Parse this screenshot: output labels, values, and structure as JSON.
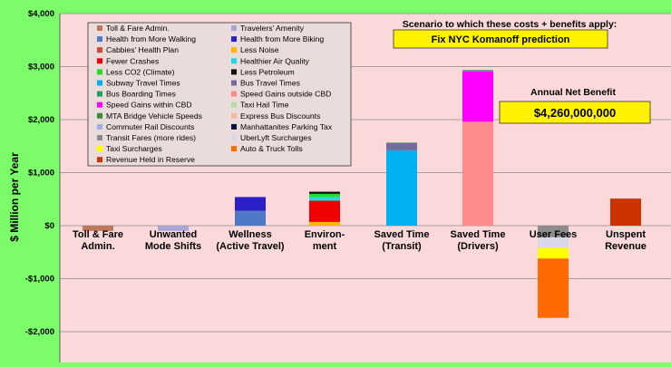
{
  "chart_data": {
    "type": "bar",
    "stacked": true,
    "title": "",
    "xlabel": "",
    "ylabel": "$ Million per Year",
    "ylim": [
      -2500,
      4000
    ],
    "yticks": [
      -2000,
      -1000,
      0,
      1000,
      2000,
      3000,
      4000
    ],
    "ytick_labels": [
      "-$2,000",
      "-$1,000",
      "$0",
      "$1,000",
      "$2,000",
      "$3,000",
      "$4,000"
    ],
    "grid": "horizontal",
    "legend_position": "top-left",
    "categories": [
      [
        "Toll & Fare",
        "Admin."
      ],
      [
        "Unwanted",
        "Mode Shifts"
      ],
      [
        "Wellness",
        "(Active Travel)"
      ],
      [
        "Environ-",
        "ment"
      ],
      [
        "Saved Time",
        "(Transit)"
      ],
      [
        "Saved Time",
        "(Drivers)"
      ],
      [
        "User Fees",
        ""
      ],
      [
        "Unspent",
        "Revenue"
      ]
    ],
    "series": [
      {
        "name": "Toll & Fare Admin.",
        "color": "#C0785A",
        "category": 0,
        "value": -100
      },
      {
        "name": "Travelers' Amenity",
        "color": "#A9A6D6",
        "category": 1,
        "value": -100
      },
      {
        "name": "Health from More Walking",
        "color": "#4F78C8",
        "category": 2,
        "value": 280
      },
      {
        "name": "Health from More Biking",
        "color": "#2A1FC8",
        "category": 2,
        "value": 260
      },
      {
        "name": "Cabbies' Health Plan",
        "color": "#C84A3A",
        "category": -1,
        "value": 0
      },
      {
        "name": "Less Noise",
        "color": "#FFB800",
        "category": 3,
        "value": 70
      },
      {
        "name": "Fewer Crashes",
        "color": "#F00000",
        "category": 3,
        "value": 400
      },
      {
        "name": "Healthier Air Quality",
        "color": "#22D8E0",
        "category": 3,
        "value": 70
      },
      {
        "name": "Less CO2 (Climate)",
        "color": "#20E020",
        "category": 3,
        "value": 60
      },
      {
        "name": "Less Petroleum",
        "color": "#101010",
        "category": 3,
        "value": 40
      },
      {
        "name": "Subway Travel Times",
        "color": "#00B0F0",
        "category": 4,
        "value": 1420
      },
      {
        "name": "Bus Travel Times",
        "color": "#7A6A9A",
        "category": 4,
        "value": 140
      },
      {
        "name": "Bus Boarding Times",
        "color": "#20A060",
        "category": 4,
        "value": 5
      },
      {
        "name": "Speed Gains outside CBD",
        "color": "#FF8C8C",
        "category": 5,
        "value": 1960
      },
      {
        "name": "Speed Gains within CBD",
        "color": "#FF00FF",
        "category": 5,
        "value": 960
      },
      {
        "name": "Taxi Hail Time",
        "color": "#B8D8A8",
        "category": 5,
        "value": 10
      },
      {
        "name": "MTA Bridge Vehicle Speeds",
        "color": "#3A8A3A",
        "category": 5,
        "value": 10
      },
      {
        "name": "Express Bus Discounts",
        "color": "#F5B8A0",
        "category": -1,
        "value": 0
      },
      {
        "name": "Commuter Rail Discounts",
        "color": "#9AB0E0",
        "category": -1,
        "value": 0
      },
      {
        "name": "Manhattanites Parking Tax",
        "color": "#101040",
        "category": -1,
        "value": 0
      },
      {
        "name": "Transit Fares (more rides)",
        "color": "#8C8C8C",
        "category": 6,
        "value": -220
      },
      {
        "name": "UberLyft Surcharges",
        "color": "#D8D8E8",
        "category": 6,
        "value": -200
      },
      {
        "name": "Taxi Surcharges",
        "color": "#FFFF00",
        "category": 6,
        "value": -200
      },
      {
        "name": "Auto & Truck Tolls",
        "color": "#FF6A00",
        "category": 6,
        "value": -1120
      },
      {
        "name": "Revenue Held in Reserve",
        "color": "#CC3300",
        "category": 7,
        "value": 510
      }
    ]
  },
  "scenario": {
    "heading": "Scenario to which these costs + benefits apply:",
    "label": "Fix NYC Komanoff prediction"
  },
  "net_benefit": {
    "heading": "Annual Net Benefit",
    "value": "$4,260,000,000"
  },
  "colors": {
    "page_background": "#7CFC6A",
    "plot_background": "#FBD9DA",
    "legend_background": "#EBDCDC",
    "callout_background": "#FFF200"
  }
}
